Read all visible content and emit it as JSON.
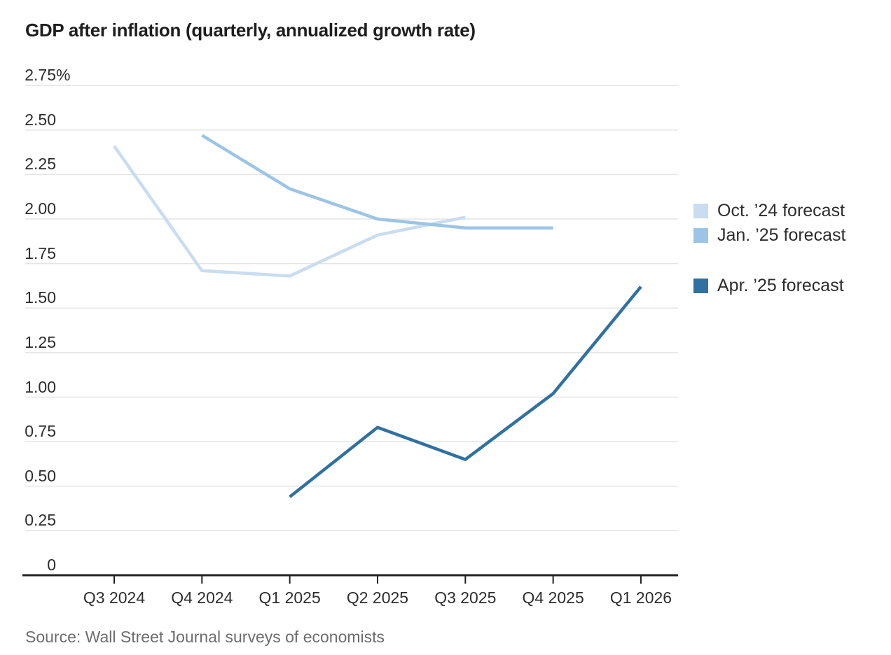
{
  "title": "GDP after inflation (quarterly, annualized growth rate)",
  "source": "Source: Wall Street Journal surveys of economists",
  "colors": {
    "oct24_series": "#c9dcf0",
    "jan25_series": "#9cc4e6",
    "apr25_series": "#31719f",
    "gridline": "#e4e4e4",
    "axis": "#222222",
    "title_text": "#1e1e1e",
    "tick_text": "#2d2d2d",
    "source_text": "#6d6d6d"
  },
  "legend": {
    "items": [
      {
        "label": "Oct. ’24 forecast",
        "color": "#c9dcf0"
      },
      {
        "label": "Jan. ’25 forecast",
        "color": "#9cc4e6"
      },
      {
        "label": "Apr. ’25 forecast",
        "color": "#31719f"
      }
    ]
  },
  "chart_data": {
    "type": "line",
    "title": "GDP after inflation (quarterly, annualized growth rate)",
    "xlabel": "",
    "ylabel": "",
    "y_unit": "%",
    "ylim": [
      0,
      2.75
    ],
    "grid": true,
    "legend_position": "right",
    "categories": [
      "Q3 2024",
      "Q4 2024",
      "Q1 2025",
      "Q2 2025",
      "Q3 2025",
      "Q4 2025",
      "Q1 2026"
    ],
    "y_ticks": [
      2.75,
      2.5,
      2.25,
      2.0,
      1.75,
      1.5,
      1.25,
      1.0,
      0.75,
      0.5,
      0.25,
      0
    ],
    "y_tick_labels": [
      "2.75",
      "2.50",
      "2.25",
      "2.00",
      "1.75",
      "1.50",
      "1.25",
      "1.00",
      "0.75",
      "0.50",
      "0.25",
      "0"
    ],
    "series": [
      {
        "name": "Oct. ’24 forecast",
        "color": "#c9dcf0",
        "start_index": 0,
        "values": [
          2.41,
          1.71,
          1.68,
          1.91,
          2.01
        ]
      },
      {
        "name": "Jan. ’25 forecast",
        "color": "#9cc4e6",
        "start_index": 1,
        "values": [
          2.47,
          2.17,
          2.0,
          1.95,
          1.95
        ]
      },
      {
        "name": "Apr. ’25 forecast",
        "color": "#31719f",
        "start_index": 2,
        "values": [
          0.44,
          0.83,
          0.65,
          1.02,
          1.62
        ]
      }
    ],
    "source": "Source: Wall Street Journal surveys of economists"
  }
}
